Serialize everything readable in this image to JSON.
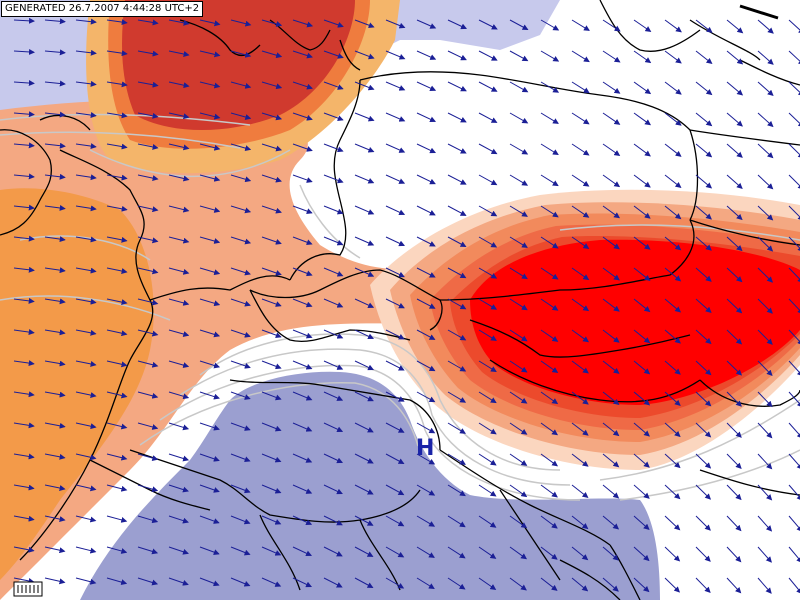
{
  "header": {
    "generated_label": "GENERATED 26.7.2007 4:44:28 UTC+2"
  },
  "pressure_marker": {
    "label": "H",
    "type": "high-pressure-center"
  },
  "legend_widget": {
    "icon": "color-scale-legend-icon"
  },
  "compass": {
    "icon": "wind-scale-bar-icon"
  },
  "colors": {
    "cold_zone": "#9b9fd0",
    "cold_zone_light": "#c7c9ec",
    "neutral": "#ffffff",
    "warm_1": "#f4a882",
    "warm_2": "#f39a49",
    "warm_3": "#ef7c3e",
    "warm_4": "#d03a2e",
    "warm_5": "#ff0000",
    "isoline": "#c8c8c8",
    "border": "#000000",
    "wind_arrow": "#1b1f96",
    "marker": "#1a24a8"
  },
  "layers": {
    "wind_vectors": "wind-arrow-icon",
    "borders": "country-border-lines",
    "isolines": "contour-lines"
  }
}
